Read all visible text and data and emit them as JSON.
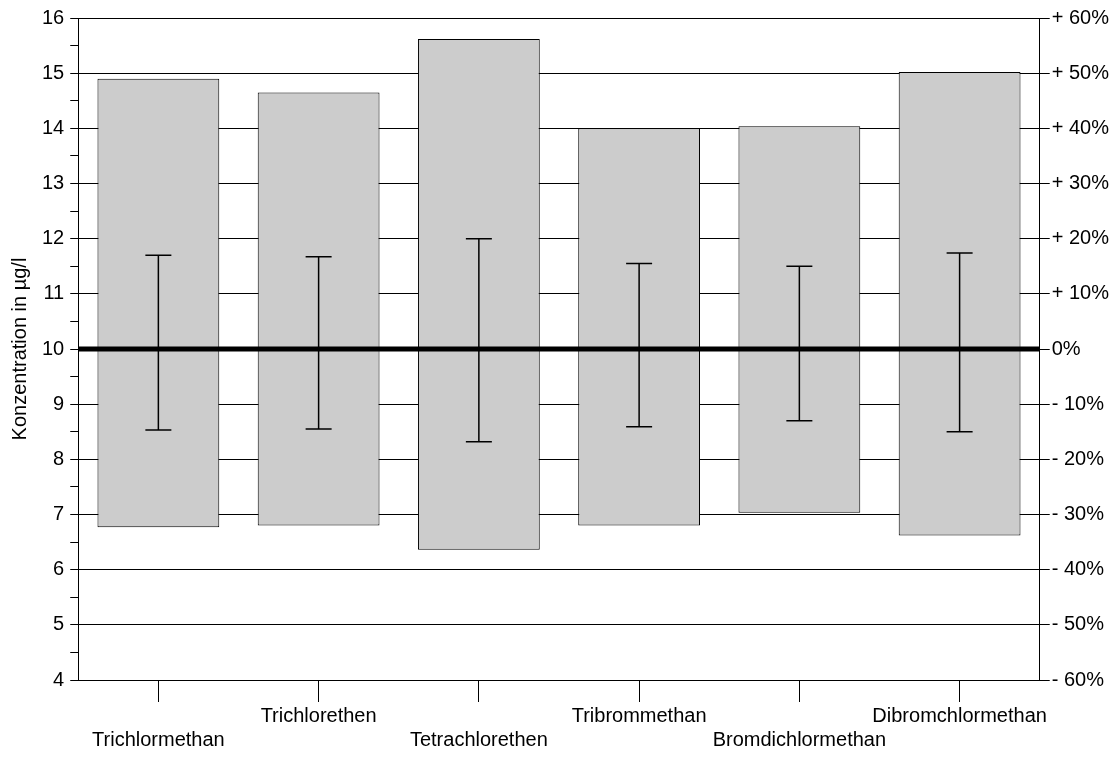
{
  "chart_data": {
    "type": "bar",
    "ylabel": "Konzentration in µg/l",
    "categories": [
      "Trichlormethan",
      "Trichlorethen",
      "Tetrachlorethen",
      "Tribrommethan",
      "Bromdichlormethan",
      "Dibromchlormethan"
    ],
    "series": [
      {
        "color": "#cccccc",
        "base": [
          6.77,
          6.8,
          6.36,
          6.8,
          7.03,
          6.62
        ],
        "values": [
          8.13,
          7.85,
          9.26,
          7.2,
          7.01,
          8.4
        ],
        "errors": [
          [
            8.53,
            11.7
          ],
          [
            8.55,
            11.67
          ],
          [
            8.32,
            12.0
          ],
          [
            8.59,
            11.55
          ],
          [
            8.7,
            11.5
          ],
          [
            8.5,
            11.74
          ]
        ]
      }
    ],
    "ylim": [
      4,
      16
    ],
    "yticks": [
      4,
      {
        "value": 4.5,
        "label": null
      },
      5,
      {
        "value": 5.5,
        "label": null
      },
      6,
      {
        "value": 6.5,
        "label": null
      },
      7,
      {
        "value": 7.5,
        "label": null
      },
      8,
      {
        "value": 8.5,
        "label": null
      },
      9,
      {
        "value": 9.5,
        "label": null
      },
      10,
      {
        "value": 10.5,
        "label": null
      },
      11,
      {
        "value": 11.5,
        "label": null
      },
      12,
      {
        "value": 12.5,
        "label": null
      },
      13,
      {
        "value": 13.5,
        "label": null
      },
      14,
      {
        "value": 14.5,
        "label": null
      },
      15,
      {
        "value": 15.5,
        "label": null
      },
      16
    ],
    "y2lim": [
      -60,
      60
    ],
    "y2ticks": [
      {
        "value": -60,
        "label": "- 60%"
      },
      {
        "value": -50,
        "label": "- 50%"
      },
      {
        "value": -40,
        "label": "- 40%"
      },
      {
        "value": -30,
        "label": "- 30%"
      },
      {
        "value": -20,
        "label": "- 20%"
      },
      {
        "value": -10,
        "label": "- 10%"
      },
      {
        "value": 0,
        "label": "0%"
      },
      {
        "value": 10,
        "label": "+ 10%"
      },
      {
        "value": 20,
        "label": "+ 20%"
      },
      {
        "value": 30,
        "label": "+ 30%"
      },
      {
        "value": 40,
        "label": "+ 40%"
      },
      {
        "value": 50,
        "label": "+ 50%"
      },
      {
        "value": 60,
        "label": "+ 60%"
      }
    ],
    "ref_lines": [
      {
        "axis": "y",
        "value": 10,
        "color": "#000000"
      }
    ],
    "grid": "y",
    "legend": false
  }
}
